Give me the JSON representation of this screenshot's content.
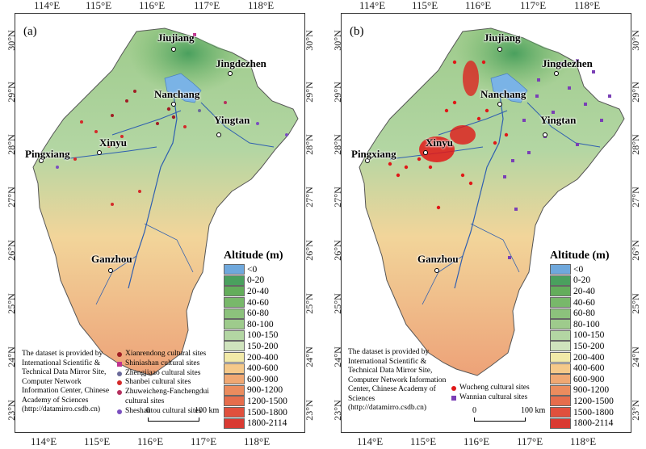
{
  "lon_ticks": [
    "114°E",
    "115°E",
    "116°E",
    "117°E",
    "118°E"
  ],
  "lat_ticks": [
    "30°N",
    "29°N",
    "28°N",
    "27°N",
    "26°N",
    "25°N",
    "24°N",
    "23°N"
  ],
  "panels": [
    {
      "label": "(a)",
      "sites": [
        {
          "name": "Xianrendong cultural sites",
          "color": "#a01d24",
          "shape": "circle"
        },
        {
          "name": "Shiniashan cultural sites",
          "color": "#c0338f",
          "shape": "square"
        },
        {
          "name": "Zhengjiaao cultural sites",
          "color": "#6a6a9a",
          "shape": "circle"
        },
        {
          "name": "Shanbei cultural sites",
          "color": "#d42a2a",
          "shape": "circle"
        },
        {
          "name": "Zhuweicheng-Fanchengdui cultural sites",
          "color": "#b5305e",
          "shape": "circle"
        },
        {
          "name": "Sheshantou cultural sites",
          "color": "#7a4fbf",
          "shape": "circle"
        }
      ]
    },
    {
      "label": "(b)",
      "sites": [
        {
          "name": "Wucheng cultural sites",
          "color": "#e01818",
          "shape": "circle"
        },
        {
          "name": "Wannian cultural sites",
          "color": "#7a3fb5",
          "shape": "square"
        }
      ]
    }
  ],
  "cities": [
    "Jiujiang",
    "Jingdezhen",
    "Nanchang",
    "Yingtan",
    "Xinyu",
    "Pingxiang",
    "Ganzhou"
  ],
  "legend": {
    "title": "Altitude (m)",
    "classes": [
      {
        "label": "<0",
        "color": "#6fa8dc"
      },
      {
        "label": "0-20",
        "color": "#4aa05e"
      },
      {
        "label": "20-40",
        "color": "#64ad5b"
      },
      {
        "label": "40-60",
        "color": "#78b86a"
      },
      {
        "label": "60-80",
        "color": "#8cc27c"
      },
      {
        "label": "80-100",
        "color": "#9ecb8c"
      },
      {
        "label": "100-150",
        "color": "#b3d6a3"
      },
      {
        "label": "150-200",
        "color": "#cfe3bd"
      },
      {
        "label": "200-400",
        "color": "#f2eaa8"
      },
      {
        "label": "400-600",
        "color": "#f5c98a"
      },
      {
        "label": "600-900",
        "color": "#f0a873"
      },
      {
        "label": "900-1200",
        "color": "#eb8c5e"
      },
      {
        "label": "1200-1500",
        "color": "#e66d4c"
      },
      {
        "label": "1500-1800",
        "color": "#e0503d"
      },
      {
        "label": "1800-2114",
        "color": "#d93a32"
      }
    ]
  },
  "credit_a": "The dataset is provided by International Scientific & Technical Data Mirror Site, Computer Network Information Center, Chinese Academy of Sciences (http://datamirro.csdb.cn)",
  "credit_b": "The dataset is provided by International Scientific & Technical Data Mirror Site, Computer Network Information Center, Chinese Academy of Sciences (http://datamirro.csdb.cn)",
  "scale": {
    "zero": "0",
    "distance": "100 km"
  }
}
